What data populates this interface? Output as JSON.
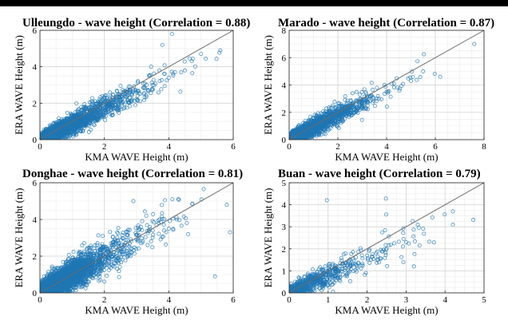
{
  "chart_data": [
    {
      "type": "scatter",
      "title": "Ulleungdo - wave height (Correlation = 0.88)",
      "xlabel": "KMA WAVE Height (m)",
      "ylabel": "ERA WAVE Height (m)",
      "xlim": [
        0,
        6
      ],
      "ylim": [
        0,
        6
      ],
      "xticks": [
        0,
        2,
        4,
        6
      ],
      "yticks": [
        0,
        2,
        4,
        6
      ],
      "grid": true,
      "reference_line": "y = x",
      "correlation": 0.88,
      "marker": "open-circle",
      "color": "#1f77b4",
      "n_points": 2600,
      "slope": 0.86,
      "noise": 0.34,
      "x_scale": 0.85,
      "seed": 11,
      "points": [
        [
          0.1,
          0.1
        ],
        [
          0.3,
          0.3
        ],
        [
          0.5,
          0.5
        ],
        [
          1.0,
          0.9
        ],
        [
          1.5,
          1.3
        ],
        [
          2.0,
          1.8
        ],
        [
          2.5,
          2.2
        ],
        [
          3.0,
          2.6
        ],
        [
          3.5,
          3.0
        ],
        [
          4.0,
          3.4
        ],
        [
          4.5,
          3.8
        ],
        [
          5.0,
          4.7
        ],
        [
          4.1,
          5.8
        ],
        [
          3.8,
          5.2
        ],
        [
          5.6,
          4.9
        ]
      ]
    },
    {
      "type": "scatter",
      "title": "Marado - wave height (Correlation = 0.87)",
      "xlabel": "KMA WAVE Height (m)",
      "ylabel": "ERA WAVE Height (m)",
      "xlim": [
        0,
        8
      ],
      "ylim": [
        0,
        8
      ],
      "xticks": [
        0,
        2,
        4,
        6,
        8
      ],
      "yticks": [
        0,
        2,
        4,
        6,
        8
      ],
      "grid": true,
      "reference_line": "y = x",
      "correlation": 0.87,
      "marker": "open-circle",
      "color": "#1f77b4",
      "n_points": 2300,
      "slope": 0.9,
      "noise": 0.38,
      "x_scale": 0.9,
      "seed": 23,
      "points": [
        [
          0.2,
          0.2
        ],
        [
          0.5,
          0.5
        ],
        [
          1.0,
          1.0
        ],
        [
          1.5,
          1.4
        ],
        [
          2.0,
          1.8
        ],
        [
          2.5,
          2.2
        ],
        [
          3.0,
          2.7
        ],
        [
          4.0,
          3.5
        ],
        [
          5.0,
          4.3
        ],
        [
          6.2,
          4.6
        ],
        [
          7.6,
          7.0
        ],
        [
          5.5,
          5.0
        ],
        [
          4.3,
          4.1
        ]
      ]
    },
    {
      "type": "scatter",
      "title": "Donghae - wave height (Correlation = 0.81)",
      "xlabel": "KMA WAVE Height (m)",
      "ylabel": "ERA WAVE Height (m)",
      "xlim": [
        0,
        6
      ],
      "ylim": [
        0,
        6
      ],
      "xticks": [
        0,
        2,
        4,
        6
      ],
      "yticks": [
        0,
        2,
        4,
        6
      ],
      "grid": true,
      "reference_line": "y = x",
      "correlation": 0.81,
      "marker": "open-circle",
      "color": "#1f77b4",
      "n_points": 3400,
      "slope": 0.98,
      "noise": 0.5,
      "x_scale": 0.8,
      "seed": 37,
      "points": [
        [
          0.1,
          0.2
        ],
        [
          0.3,
          0.4
        ],
        [
          0.6,
          0.7
        ],
        [
          1.0,
          1.1
        ],
        [
          1.5,
          1.5
        ],
        [
          2.0,
          2.0
        ],
        [
          2.5,
          2.4
        ],
        [
          3.0,
          2.9
        ],
        [
          3.5,
          3.4
        ],
        [
          4.0,
          3.5
        ],
        [
          5.8,
          4.8
        ],
        [
          5.9,
          3.3
        ],
        [
          2.9,
          5.0
        ],
        [
          3.3,
          4.2
        ]
      ]
    },
    {
      "type": "scatter",
      "title": "Buan - wave height (Correlation = 0.79)",
      "xlabel": "KMA WAVE Height (m)",
      "ylabel": "ERA WAVE Height (m)",
      "xlim": [
        0,
        5
      ],
      "ylim": [
        0,
        5
      ],
      "xticks": [
        0,
        1,
        2,
        3,
        4,
        5
      ],
      "yticks": [
        0,
        1,
        2,
        3,
        4,
        5
      ],
      "grid": true,
      "reference_line": "y = x",
      "correlation": 0.79,
      "marker": "open-circle",
      "color": "#1f77b4",
      "n_points": 750,
      "slope": 0.78,
      "noise": 0.32,
      "x_scale": 0.75,
      "seed": 53,
      "points": [
        [
          0.2,
          0.2
        ],
        [
          0.4,
          0.4
        ],
        [
          0.6,
          0.6
        ],
        [
          0.8,
          0.8
        ],
        [
          1.0,
          0.9
        ],
        [
          1.5,
          1.3
        ],
        [
          2.0,
          1.7
        ],
        [
          2.5,
          2.0
        ],
        [
          3.0,
          2.3
        ],
        [
          3.3,
          3.1
        ],
        [
          4.2,
          3.7
        ],
        [
          4.2,
          3.1
        ],
        [
          3.2,
          1.2
        ]
      ]
    }
  ]
}
